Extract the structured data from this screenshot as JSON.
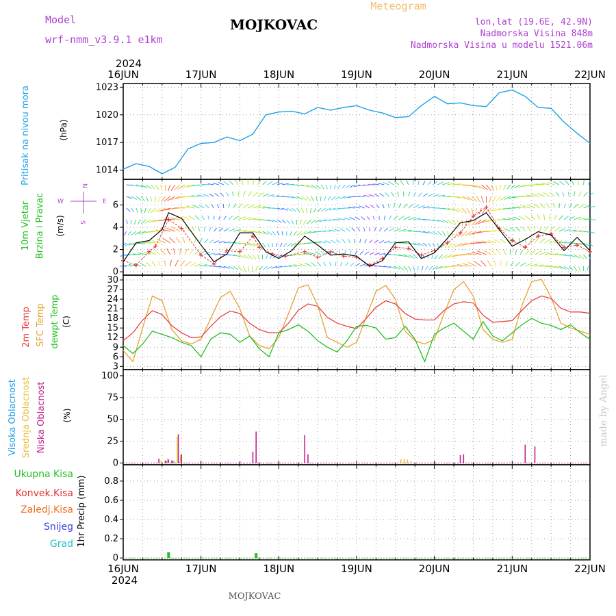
{
  "header": {
    "model_label": "Model",
    "model_name": "wrf-nmm_v3.9.1  e1km",
    "station_title": "MOJKOVAC",
    "meteogram_label": "Meteogram",
    "lonlat": "lon,lat (19.6E, 42.9N)",
    "altitude": "Nadmorska Visina 848m",
    "model_altitude": "Nadmorska Visina u modelu 1521.06m",
    "watermark": "made by Angel",
    "footer_station": "MOJKOVAC"
  },
  "colors": {
    "pressure": "#1ea0e6",
    "wind_speed": "#000000",
    "gust": "#e03030",
    "temp2m": "#e84040",
    "sfc_temp": "#e8a030",
    "dewpoint": "#22c022",
    "cloud_high": "#1ea0e6",
    "cloud_mid": "#e8c040",
    "cloud_low": "#c0208c",
    "precip_total": "#22c022",
    "precip_conv": "#e03030",
    "precip_frozen": "#f07020",
    "precip_snow": "#4040e0",
    "precip_graupel": "#20c0c0",
    "grid": "#999999",
    "label_purple": "#b040d0"
  },
  "chart_data": [
    {
      "id": "pressure",
      "type": "line",
      "ylabel_1": "Pritisak na nivou mora",
      "ylabel_2": "(hPa)",
      "yticks": [
        1014,
        1017,
        1020,
        1023
      ],
      "ylim": [
        1013,
        1023.4
      ],
      "x_unit": "hours from 16 JUN 2024 00 UTC",
      "series": [
        {
          "x": [
            0,
            4,
            8,
            12,
            16,
            20,
            24,
            28,
            32,
            36,
            40,
            44,
            48,
            52,
            56,
            60,
            64,
            68,
            72,
            76,
            80,
            84,
            88,
            92,
            96,
            100,
            104,
            108,
            112,
            116,
            120,
            124,
            128,
            132,
            136,
            140,
            144
          ],
          "values": [
            1014.1,
            1014.7,
            1014.4,
            1013.6,
            1014.3,
            1016.3,
            1016.9,
            1017.0,
            1017.6,
            1017.2,
            1017.9,
            1020.0,
            1020.3,
            1020.4,
            1020.1,
            1020.8,
            1020.5,
            1020.8,
            1021.0,
            1020.5,
            1020.2,
            1019.7,
            1019.8,
            1021.0,
            1022.0,
            1021.2,
            1021.3,
            1021.0,
            1020.9,
            1022.4,
            1022.7,
            1022.0,
            1020.8,
            1020.7,
            1019.2,
            1018.0,
            1016.9
          ]
        }
      ]
    },
    {
      "id": "wind",
      "type": "line",
      "ylabel_1": "10m Vjetar",
      "ylabel_2": "Brzina i Pravac",
      "ylabel_3": "(m/s)",
      "compass_labels": [
        "N",
        "W",
        "E",
        "S",
        "<",
        "-",
        "|",
        "-",
        ">"
      ],
      "yticks": [
        0,
        2,
        4,
        6
      ],
      "ylim": [
        -0.3,
        8.3
      ],
      "series": [
        {
          "name": "speed",
          "x": [
            0,
            4,
            8,
            12,
            14,
            18,
            24,
            28,
            32,
            36,
            40,
            44,
            48,
            52,
            56,
            60,
            64,
            68,
            72,
            76,
            80,
            84,
            88,
            92,
            96,
            100,
            104,
            108,
            112,
            116,
            120,
            124,
            128,
            132,
            136,
            140,
            144
          ],
          "values": [
            0.9,
            2.6,
            2.8,
            3.8,
            5.3,
            4.8,
            2.4,
            0.9,
            1.6,
            3.5,
            3.5,
            1.8,
            1.2,
            1.9,
            3.2,
            2.4,
            1.5,
            1.6,
            1.4,
            0.5,
            1.0,
            2.6,
            2.7,
            1.2,
            1.7,
            3.0,
            4.4,
            4.6,
            5.3,
            3.8,
            2.3,
            2.9,
            3.6,
            3.3,
            1.9,
            3.1,
            1.9
          ]
        },
        {
          "name": "gust",
          "x": [
            0,
            4,
            8,
            10,
            14,
            18,
            24,
            28,
            32,
            36,
            40,
            42,
            46,
            50,
            56,
            60,
            64,
            68,
            72,
            76,
            80,
            84,
            88,
            92,
            96,
            100,
            104,
            108,
            112,
            116,
            120,
            124,
            128,
            132,
            136,
            140,
            144
          ],
          "values": [
            1.0,
            0.6,
            1.8,
            2.3,
            4.7,
            3.9,
            1.5,
            0.7,
            1.9,
            1.8,
            3.2,
            2.2,
            1.6,
            1.4,
            1.8,
            1.3,
            1.8,
            1.4,
            1.3,
            0.6,
            1.2,
            2.2,
            2.1,
            1.5,
            1.9,
            2.6,
            3.5,
            5.0,
            5.8,
            3.9,
            2.8,
            2.2,
            3.2,
            3.4,
            2.2,
            2.4,
            1.8
          ]
        }
      ]
    },
    {
      "id": "temperature",
      "type": "line",
      "ylabel_1": "2m Temp",
      "ylabel_2": "SFC Temp",
      "ylabel_3": "dewpt Temp",
      "ylabel_4": "(C)",
      "yticks": [
        3,
        6,
        9,
        12,
        15,
        18,
        21,
        24,
        27,
        30
      ],
      "ylim": [
        2,
        31.5
      ],
      "series": [
        {
          "name": "2m Temp",
          "x": [
            0,
            3,
            6,
            9,
            12,
            15,
            18,
            21,
            24,
            27,
            30,
            33,
            36,
            39,
            42,
            45,
            48,
            51,
            54,
            57,
            60,
            63,
            66,
            69,
            72,
            75,
            78,
            81,
            84,
            87,
            90,
            93,
            96,
            99,
            102,
            105,
            108,
            111,
            114,
            117,
            120,
            123,
            126,
            129,
            132,
            135,
            138,
            141,
            144
          ],
          "values": [
            11.0,
            13.5,
            17.5,
            20.4,
            19.2,
            15.7,
            13.5,
            12.0,
            12.2,
            15.5,
            18.5,
            20.3,
            19.5,
            16.5,
            14.5,
            13.5,
            13.5,
            16.5,
            20.5,
            22.5,
            21.8,
            18.3,
            16.5,
            15.5,
            14.8,
            18.0,
            21.5,
            23.5,
            22.5,
            19.5,
            17.8,
            17.5,
            17.5,
            20.5,
            22.5,
            23.2,
            22.8,
            19.0,
            16.8,
            17.0,
            17.3,
            20.5,
            23.5,
            25.0,
            24.2,
            21.2,
            20.0,
            20.0,
            19.6
          ]
        },
        {
          "name": "SFC Temp",
          "x": [
            0,
            3,
            6,
            9,
            12,
            15,
            18,
            21,
            24,
            27,
            30,
            33,
            36,
            39,
            42,
            45,
            48,
            51,
            54,
            57,
            60,
            63,
            66,
            69,
            72,
            75,
            78,
            81,
            84,
            87,
            90,
            93,
            96,
            99,
            102,
            105,
            108,
            111,
            114,
            117,
            120,
            123,
            126,
            129,
            132,
            135,
            138,
            141,
            144
          ],
          "values": [
            8.0,
            4.5,
            15.0,
            25.0,
            23.5,
            14.5,
            11.0,
            10.0,
            11.5,
            18.0,
            24.5,
            26.5,
            21.0,
            12.5,
            9.5,
            8.5,
            12.0,
            19.5,
            27.5,
            28.5,
            22.0,
            12.0,
            10.5,
            9.0,
            10.5,
            18.5,
            26.5,
            28.3,
            24.0,
            14.0,
            11.0,
            10.0,
            11.5,
            19.5,
            27.0,
            29.5,
            25.0,
            14.5,
            11.5,
            10.5,
            11.5,
            22.0,
            29.5,
            30.2,
            24.5,
            16.5,
            15.0,
            14.0,
            13.0
          ]
        },
        {
          "name": "dewpt Temp",
          "x": [
            0,
            3,
            6,
            9,
            12,
            15,
            18,
            21,
            24,
            27,
            30,
            33,
            36,
            39,
            42,
            45,
            48,
            51,
            54,
            57,
            60,
            63,
            66,
            69,
            72,
            75,
            78,
            81,
            84,
            87,
            90,
            93,
            96,
            99,
            102,
            105,
            108,
            111,
            114,
            117,
            120,
            123,
            126,
            129,
            132,
            135,
            138,
            141,
            144
          ],
          "values": [
            9.5,
            7.0,
            10.0,
            14.0,
            13.0,
            12.0,
            10.5,
            9.5,
            6.0,
            11.5,
            13.5,
            13.0,
            10.5,
            12.5,
            8.5,
            6.0,
            13.5,
            14.5,
            16.0,
            14.0,
            11.0,
            9.0,
            7.5,
            11.0,
            15.5,
            15.8,
            15.0,
            11.5,
            12.0,
            15.5,
            11.5,
            4.5,
            13.0,
            15.0,
            16.5,
            14.0,
            11.5,
            17.0,
            12.5,
            11.0,
            13.5,
            16.0,
            18.0,
            16.5,
            15.8,
            14.5,
            16.0,
            13.5,
            11.5
          ]
        }
      ]
    },
    {
      "id": "cloud",
      "type": "bar",
      "ylabel_1": "Visoka Oblacnost",
      "ylabel_2": "Srednja Oblacnost",
      "ylabel_3": "Niska Oblacnost",
      "ylabel_4": "(%)",
      "yticks": [
        0,
        25,
        50,
        75,
        100
      ],
      "ylim": [
        -2,
        107
      ],
      "series": [
        {
          "name": "Niska Oblacnost",
          "x": [
            11,
            13,
            14,
            15,
            17,
            18,
            36,
            40,
            41,
            56,
            57,
            104,
            105,
            124,
            127
          ],
          "values": [
            5,
            3,
            4,
            3,
            33,
            10,
            2,
            13,
            36,
            32,
            10,
            9,
            10,
            21,
            19
          ]
        },
        {
          "name": "Srednja Oblacnost",
          "x": [
            10,
            12,
            14,
            16,
            17,
            18,
            86,
            87,
            88,
            89
          ],
          "values": [
            1,
            3,
            5,
            3,
            30,
            9,
            4,
            5,
            4,
            2
          ]
        },
        {
          "name": "Visoka Oblacnost",
          "x": [
            13,
            15,
            17
          ],
          "values": [
            2,
            2,
            1
          ]
        }
      ]
    },
    {
      "id": "precip",
      "type": "bar",
      "legend": [
        "Ukupna  Kisa",
        "Konvek.Kisa",
        "Zaledj.Kisa",
        "Snijeg",
        "Grad"
      ],
      "ylabel": "1hr Precip (mm)",
      "yticks": [
        0,
        0.2,
        0.4,
        0.6,
        0.8
      ],
      "ylim": [
        -0.02,
        0.97
      ],
      "series": [
        {
          "name": "Ukupna  Kisa",
          "x": [
            14,
            41
          ],
          "values": [
            0.06,
            0.05
          ]
        },
        {
          "name": "Konvek.Kisa",
          "x": [],
          "values": []
        },
        {
          "name": "Zaledj.Kisa",
          "x": [],
          "values": []
        },
        {
          "name": "Snijeg",
          "x": [],
          "values": []
        },
        {
          "name": "Grad",
          "x": [],
          "values": []
        }
      ]
    }
  ],
  "x_axis": {
    "year": "2024",
    "tick_labels": [
      "16JUN",
      "17JUN",
      "18JUN",
      "19JUN",
      "20JUN",
      "21JUN",
      "22JUN"
    ],
    "tick_hours": [
      0,
      24,
      48,
      72,
      96,
      120,
      144
    ],
    "xlim": [
      0,
      144
    ]
  }
}
